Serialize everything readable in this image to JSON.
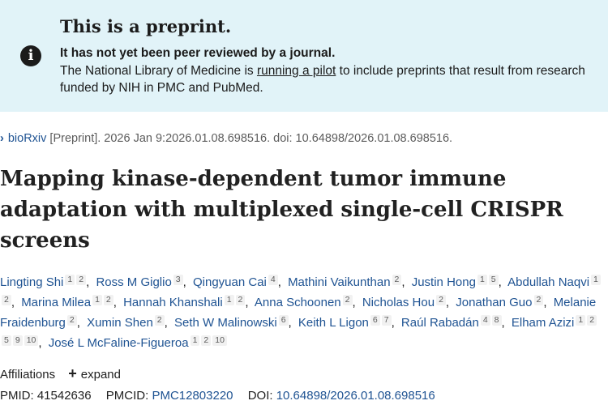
{
  "banner": {
    "icon": "info-icon",
    "title": "This is a preprint.",
    "subtitle": "It has not yet been peer reviewed by a journal.",
    "body_pre": "The National Library of Medicine is ",
    "body_link": "running a pilot",
    "body_post": " to include preprints that result from research funded by NIH in PMC and PubMed."
  },
  "citation": {
    "source_link": "bioRxiv",
    "details": " [Preprint]. 2026 Jan 9:2026.01.08.698516. doi: 10.64898/2026.01.08.698516."
  },
  "article": {
    "title": "Mapping kinase-dependent tumor immune adaptation with multiplexed single-cell CRISPR screens"
  },
  "authors": [
    {
      "name": "Lingting Shi",
      "affils": [
        "1",
        "2"
      ]
    },
    {
      "name": "Ross M Giglio",
      "affils": [
        "3"
      ]
    },
    {
      "name": "Qingyuan Cai",
      "affils": [
        "4"
      ]
    },
    {
      "name": "Mathini Vaikunthan",
      "affils": [
        "2"
      ]
    },
    {
      "name": "Justin Hong",
      "affils": [
        "1",
        "5"
      ]
    },
    {
      "name": "Abdullah Naqvi",
      "affils": [
        "1",
        "2"
      ]
    },
    {
      "name": "Marina Milea",
      "affils": [
        "1",
        "2"
      ]
    },
    {
      "name": "Hannah Khanshali",
      "affils": [
        "1",
        "2"
      ]
    },
    {
      "name": "Anna Schoonen",
      "affils": [
        "2"
      ]
    },
    {
      "name": "Nicholas Hou",
      "affils": [
        "2"
      ]
    },
    {
      "name": "Jonathan Guo",
      "affils": [
        "2"
      ]
    },
    {
      "name": "Melanie Fraidenburg",
      "affils": [
        "2"
      ]
    },
    {
      "name": "Xumin Shen",
      "affils": [
        "2"
      ]
    },
    {
      "name": "Seth W Malinowski",
      "affils": [
        "6"
      ]
    },
    {
      "name": "Keith L Ligon",
      "affils": [
        "6",
        "7"
      ]
    },
    {
      "name": "Raúl Rabadán",
      "affils": [
        "4",
        "8"
      ]
    },
    {
      "name": "Elham Azizi",
      "affils": [
        "1",
        "2",
        "5",
        "9",
        "10"
      ]
    },
    {
      "name": "José L McFaline-Figueroa",
      "affils": [
        "1",
        "2",
        "10"
      ]
    }
  ],
  "affiliations": {
    "label": "Affiliations",
    "expand_icon": "plus-icon",
    "expand_label": "expand"
  },
  "identifiers": {
    "pmid_label": "PMID:",
    "pmid": "41542636",
    "pmcid_label": "PMCID:",
    "pmcid": "PMC12803220",
    "doi_label": "DOI:",
    "doi": "10.64898/2026.01.08.698516"
  },
  "colors": {
    "banner_bg": "#e1f3f8",
    "link": "#205493",
    "text": "#212121"
  }
}
